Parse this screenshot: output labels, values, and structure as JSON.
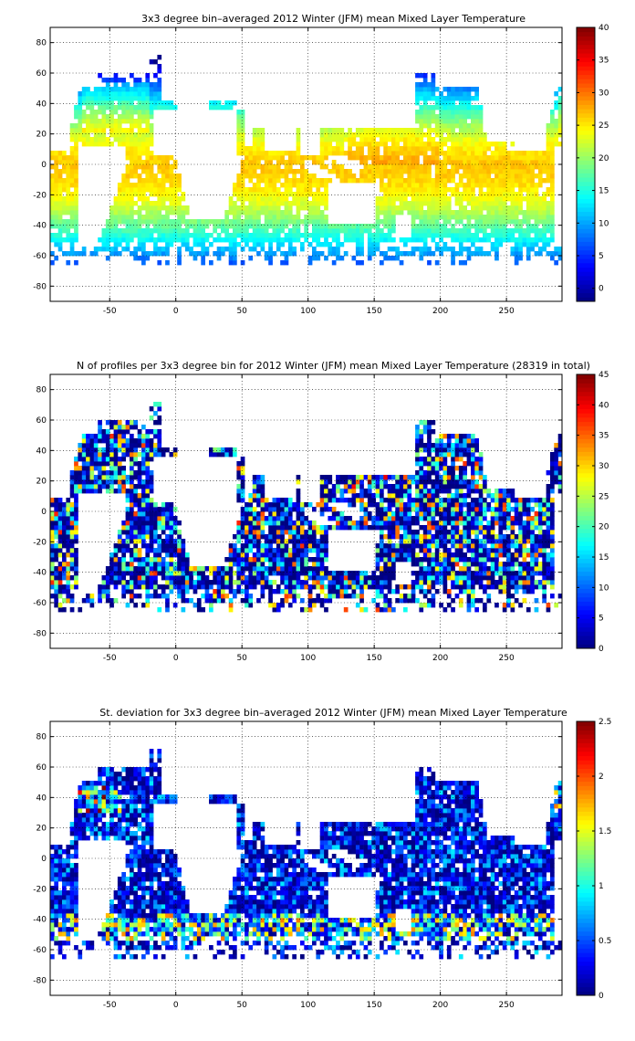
{
  "chart_data": [
    {
      "type": "heatmap",
      "title": "3x3 degree bin–averaged 2012 Winter (JFM) mean Mixed Layer Temperature",
      "xlim": [
        -95,
        292
      ],
      "ylim": [
        -90,
        90
      ],
      "x_ticks": [
        -50,
        0,
        50,
        100,
        150,
        200,
        250
      ],
      "y_ticks": [
        -80,
        -60,
        -40,
        -20,
        0,
        20,
        40,
        60,
        80
      ],
      "colorbar": {
        "min": -2,
        "max": 40,
        "ticks": [
          0,
          5,
          10,
          15,
          20,
          25,
          30,
          35,
          40
        ]
      },
      "grid": true,
      "colormap": "jet",
      "field": "temperature",
      "bin_size_deg": 3
    },
    {
      "type": "heatmap",
      "title": "N of profiles per 3x3 degree bin for 2012 Winter (JFM) mean Mixed Layer Temperature  (28319 in total)",
      "xlim": [
        -95,
        292
      ],
      "ylim": [
        -90,
        90
      ],
      "x_ticks": [
        -50,
        0,
        50,
        100,
        150,
        200,
        250
      ],
      "y_ticks": [
        -80,
        -60,
        -40,
        -20,
        0,
        20,
        40,
        60,
        80
      ],
      "colorbar": {
        "min": 0,
        "max": 45,
        "ticks": [
          0,
          5,
          10,
          15,
          20,
          25,
          30,
          35,
          40,
          45
        ]
      },
      "grid": true,
      "colormap": "jet",
      "field": "count",
      "bin_size_deg": 3
    },
    {
      "type": "heatmap",
      "title": "St. deviation for 3x3 degree bin–averaged 2012 Winter (JFM) mean Mixed Layer Temperature",
      "xlim": [
        -95,
        292
      ],
      "ylim": [
        -90,
        90
      ],
      "x_ticks": [
        -50,
        0,
        50,
        100,
        150,
        200,
        250
      ],
      "y_ticks": [
        -80,
        -60,
        -40,
        -20,
        0,
        20,
        40,
        60,
        80
      ],
      "colorbar": {
        "min": 0,
        "max": 2.5,
        "ticks": [
          0,
          0.5,
          1,
          1.5,
          2,
          2.5
        ]
      },
      "grid": true,
      "colormap": "jet",
      "field": "stdev",
      "bin_size_deg": 3
    }
  ]
}
